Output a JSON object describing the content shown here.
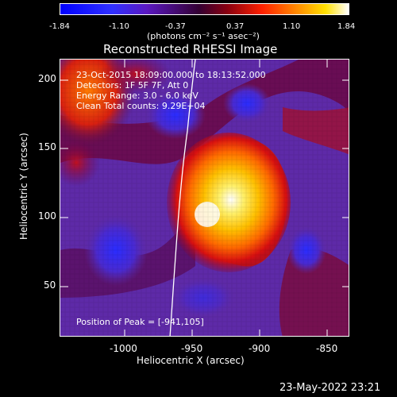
{
  "colorbar": {
    "ticks": [
      "-1.84",
      "-1.10",
      "-0.37",
      "0.37",
      "1.10",
      "1.84"
    ],
    "unit": "(photons cm⁻² s⁻¹ asec⁻²)"
  },
  "title": "Reconstructed RHESSI Image",
  "plot": {
    "info_lines": [
      "23-Oct-2015 18:09:00.000 to 18:13:52.000",
      "Detectors: 1F 5F 7F, Att 0",
      "Energy Range: 3.0 - 6.0 keV",
      "Clean     Total counts: 9.29E+04"
    ],
    "peak_text": "Position of Peak = [-941,105]",
    "x_ticks": [
      "-1000",
      "-950",
      "-900",
      "-850"
    ],
    "y_ticks": [
      "200",
      "150",
      "100",
      "50"
    ],
    "xlabel": "Heliocentric X (arcsec)",
    "ylabel": "Heliocentric Y (arcsec)"
  },
  "timestamp": "23-May-2022 23:21",
  "colors": {
    "background": "#000000",
    "low": "#5a2aa8",
    "mid": "#b0002a",
    "high": "#ffe000",
    "peak": "#ffffff"
  }
}
